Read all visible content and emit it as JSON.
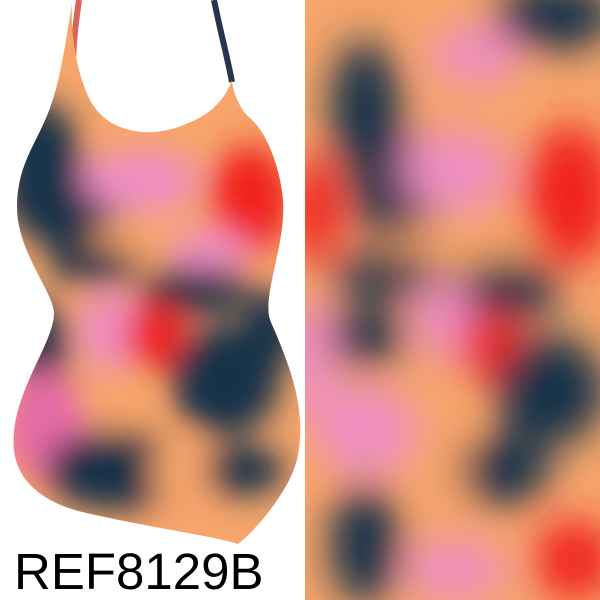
{
  "product": {
    "reference_code": "REF8129B"
  },
  "garment": {
    "type": "swimsuit-mockup"
  },
  "print_swatch": {
    "type": "fabric-pattern-swatch"
  },
  "palette": {
    "peach": "#f6a56b",
    "orange": "#f08a4f",
    "pink": "#ee8ec3",
    "magenta": "#e66aa7",
    "red": "#f0201a",
    "navy": "#13304a",
    "background": "#ffffff",
    "text": "#000000"
  }
}
